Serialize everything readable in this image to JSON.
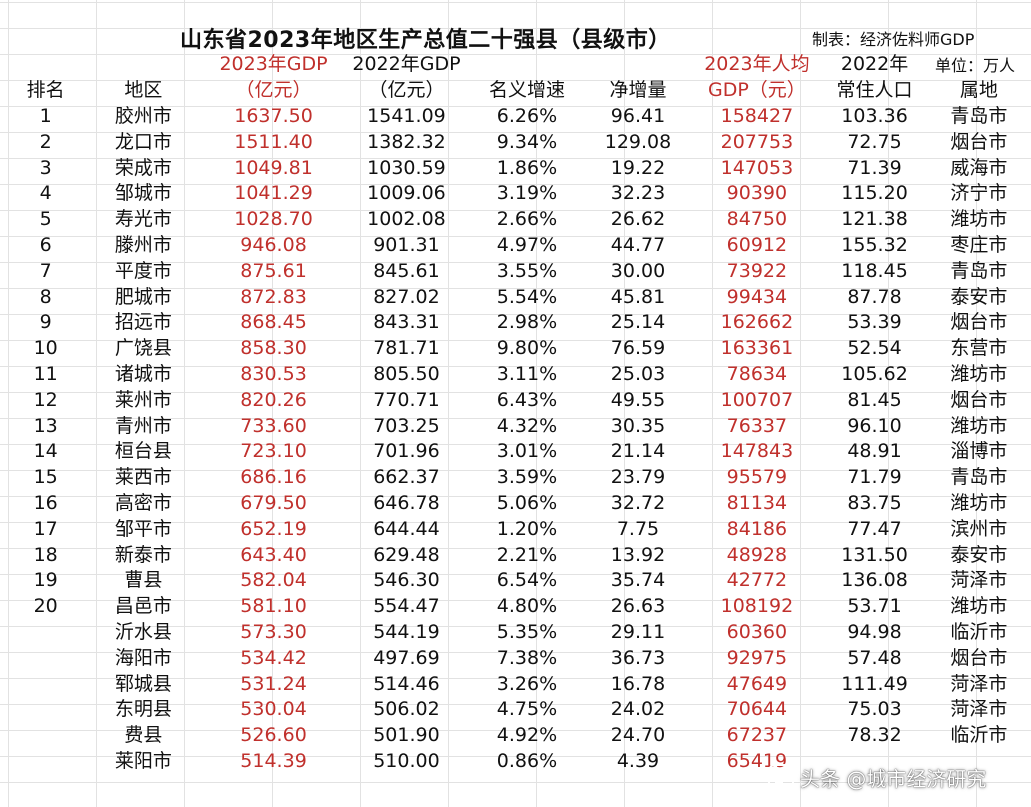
{
  "title": "山东省2023年地区生产总值二十强县（县级市）",
  "maker": "制表：经济佐料师GDP",
  "unit": "单位：万人",
  "headers": {
    "rank": "排名",
    "region": "地区",
    "gdp2023_line1": "2023年GDP",
    "gdp2023_line2": "（亿元）",
    "gdp2022_line1": "2022年GDP",
    "gdp2022_line2": "（亿元）",
    "growth": "名义增速",
    "increase": "净增量",
    "per_capita_line1": "2023年人均",
    "per_capita_line2": "GDP（元）",
    "pop_line1": "2022年",
    "pop_line2": "常住人口",
    "prefecture": "属地"
  },
  "rows": [
    {
      "rank": "1",
      "region": "胶州市",
      "gdp2023": "1637.50",
      "gdp2022": "1541.09",
      "growth": "6.26%",
      "increase": "96.41",
      "per_capita": "158427",
      "population": "103.36",
      "prefecture": "青岛市"
    },
    {
      "rank": "2",
      "region": "龙口市",
      "gdp2023": "1511.40",
      "gdp2022": "1382.32",
      "growth": "9.34%",
      "increase": "129.08",
      "per_capita": "207753",
      "population": "72.75",
      "prefecture": "烟台市"
    },
    {
      "rank": "3",
      "region": "荣成市",
      "gdp2023": "1049.81",
      "gdp2022": "1030.59",
      "growth": "1.86%",
      "increase": "19.22",
      "per_capita": "147053",
      "population": "71.39",
      "prefecture": "威海市"
    },
    {
      "rank": "4",
      "region": "邹城市",
      "gdp2023": "1041.29",
      "gdp2022": "1009.06",
      "growth": "3.19%",
      "increase": "32.23",
      "per_capita": "90390",
      "population": "115.20",
      "prefecture": "济宁市"
    },
    {
      "rank": "5",
      "region": "寿光市",
      "gdp2023": "1028.70",
      "gdp2022": "1002.08",
      "growth": "2.66%",
      "increase": "26.62",
      "per_capita": "84750",
      "population": "121.38",
      "prefecture": "潍坊市"
    },
    {
      "rank": "6",
      "region": "滕州市",
      "gdp2023": "946.08",
      "gdp2022": "901.31",
      "growth": "4.97%",
      "increase": "44.77",
      "per_capita": "60912",
      "population": "155.32",
      "prefecture": "枣庄市"
    },
    {
      "rank": "7",
      "region": "平度市",
      "gdp2023": "875.61",
      "gdp2022": "845.61",
      "growth": "3.55%",
      "increase": "30.00",
      "per_capita": "73922",
      "population": "118.45",
      "prefecture": "青岛市"
    },
    {
      "rank": "8",
      "region": "肥城市",
      "gdp2023": "872.83",
      "gdp2022": "827.02",
      "growth": "5.54%",
      "increase": "45.81",
      "per_capita": "99434",
      "population": "87.78",
      "prefecture": "泰安市"
    },
    {
      "rank": "9",
      "region": "招远市",
      "gdp2023": "868.45",
      "gdp2022": "843.31",
      "growth": "2.98%",
      "increase": "25.14",
      "per_capita": "162662",
      "population": "53.39",
      "prefecture": "烟台市"
    },
    {
      "rank": "10",
      "region": "广饶县",
      "gdp2023": "858.30",
      "gdp2022": "781.71",
      "growth": "9.80%",
      "increase": "76.59",
      "per_capita": "163361",
      "population": "52.54",
      "prefecture": "东营市"
    },
    {
      "rank": "11",
      "region": "诸城市",
      "gdp2023": "830.53",
      "gdp2022": "805.50",
      "growth": "3.11%",
      "increase": "25.03",
      "per_capita": "78634",
      "population": "105.62",
      "prefecture": "潍坊市"
    },
    {
      "rank": "12",
      "region": "莱州市",
      "gdp2023": "820.26",
      "gdp2022": "770.71",
      "growth": "6.43%",
      "increase": "49.55",
      "per_capita": "100707",
      "population": "81.45",
      "prefecture": "烟台市"
    },
    {
      "rank": "13",
      "region": "青州市",
      "gdp2023": "733.60",
      "gdp2022": "703.25",
      "growth": "4.32%",
      "increase": "30.35",
      "per_capita": "76337",
      "population": "96.10",
      "prefecture": "潍坊市"
    },
    {
      "rank": "14",
      "region": "桓台县",
      "gdp2023": "723.10",
      "gdp2022": "701.96",
      "growth": "3.01%",
      "increase": "21.14",
      "per_capita": "147843",
      "population": "48.91",
      "prefecture": "淄博市"
    },
    {
      "rank": "15",
      "region": "莱西市",
      "gdp2023": "686.16",
      "gdp2022": "662.37",
      "growth": "3.59%",
      "increase": "23.79",
      "per_capita": "95579",
      "population": "71.79",
      "prefecture": "青岛市"
    },
    {
      "rank": "16",
      "region": "高密市",
      "gdp2023": "679.50",
      "gdp2022": "646.78",
      "growth": "5.06%",
      "increase": "32.72",
      "per_capita": "81134",
      "population": "83.75",
      "prefecture": "潍坊市"
    },
    {
      "rank": "17",
      "region": "邹平市",
      "gdp2023": "652.19",
      "gdp2022": "644.44",
      "growth": "1.20%",
      "increase": "7.75",
      "per_capita": "84186",
      "population": "77.47",
      "prefecture": "滨州市"
    },
    {
      "rank": "18",
      "region": "新泰市",
      "gdp2023": "643.40",
      "gdp2022": "629.48",
      "growth": "2.21%",
      "increase": "13.92",
      "per_capita": "48928",
      "population": "131.50",
      "prefecture": "泰安市"
    },
    {
      "rank": "19",
      "region": "曹县",
      "gdp2023": "582.04",
      "gdp2022": "546.30",
      "growth": "6.54%",
      "increase": "35.74",
      "per_capita": "42772",
      "population": "136.08",
      "prefecture": "菏泽市"
    },
    {
      "rank": "20",
      "region": "昌邑市",
      "gdp2023": "581.10",
      "gdp2022": "554.47",
      "growth": "4.80%",
      "increase": "26.63",
      "per_capita": "108192",
      "population": "53.71",
      "prefecture": "潍坊市"
    },
    {
      "rank": "",
      "region": "沂水县",
      "gdp2023": "573.30",
      "gdp2022": "544.19",
      "growth": "5.35%",
      "increase": "29.11",
      "per_capita": "60360",
      "population": "94.98",
      "prefecture": "临沂市"
    },
    {
      "rank": "",
      "region": "海阳市",
      "gdp2023": "534.42",
      "gdp2022": "497.69",
      "growth": "7.38%",
      "increase": "36.73",
      "per_capita": "92975",
      "population": "57.48",
      "prefecture": "烟台市"
    },
    {
      "rank": "",
      "region": "郓城县",
      "gdp2023": "531.24",
      "gdp2022": "514.46",
      "growth": "3.26%",
      "increase": "16.78",
      "per_capita": "47649",
      "population": "111.49",
      "prefecture": "菏泽市"
    },
    {
      "rank": "",
      "region": "东明县",
      "gdp2023": "530.04",
      "gdp2022": "506.02",
      "growth": "4.75%",
      "increase": "24.02",
      "per_capita": "70644",
      "population": "75.03",
      "prefecture": "菏泽市"
    },
    {
      "rank": "",
      "region": "费县",
      "gdp2023": "526.60",
      "gdp2022": "501.90",
      "growth": "4.92%",
      "increase": "24.70",
      "per_capita": "67237",
      "population": "78.32",
      "prefecture": "临沂市"
    },
    {
      "rank": "",
      "region": "莱阳市",
      "gdp2023": "514.39",
      "gdp2022": "510.00",
      "growth": "0.86%",
      "increase": "4.39",
      "per_capita": "65419",
      "population": "",
      "prefecture": ""
    }
  ],
  "watermark": "头条 @城市经济研究",
  "colors": {
    "highlight": "#c0302c",
    "grid": "#e2e2e2"
  }
}
